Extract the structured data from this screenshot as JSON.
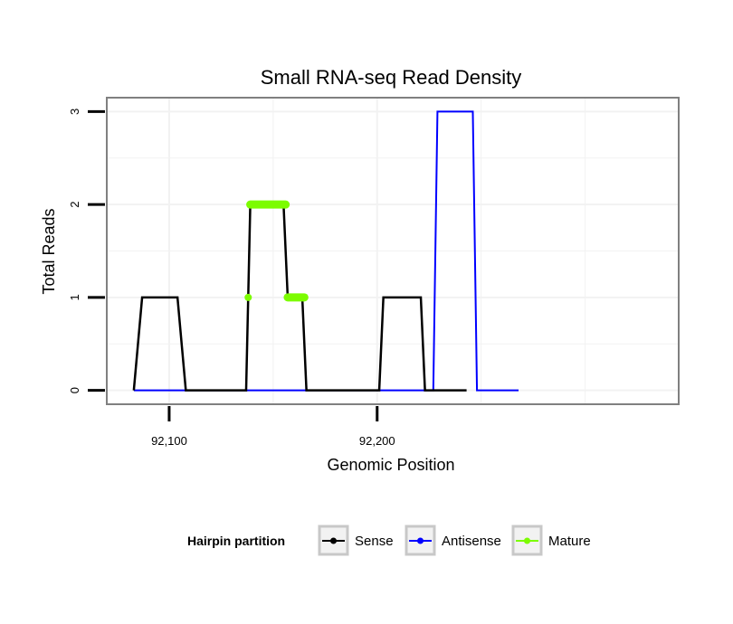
{
  "chart_data": {
    "type": "line",
    "title": "Small RNA-seq Read Density",
    "xlabel": "Genomic Position",
    "ylabel": "Total Reads",
    "xlim": [
      92070,
      92345
    ],
    "ylim": [
      -0.15,
      3.15
    ],
    "x_ticks": [
      92100,
      92200
    ],
    "x_tick_labels": [
      "92,100",
      "92,200"
    ],
    "y_ticks": [
      0,
      1,
      2,
      3
    ],
    "y_tick_labels": [
      "0",
      "1",
      "2",
      "3"
    ],
    "grid": true,
    "legend_title": "Hairpin partition",
    "legend_position": "bottom",
    "series": [
      {
        "name": "Sense",
        "color": "#000000",
        "x": [
          92083,
          92087,
          92104,
          92108,
          92137,
          92139,
          92155,
          92157,
          92164,
          92166,
          92201,
          92203,
          92221,
          92223,
          92243
        ],
        "y": [
          0,
          1,
          1,
          0,
          0,
          2,
          2,
          1,
          1,
          0,
          0,
          1,
          1,
          0,
          0
        ]
      },
      {
        "name": "Antisense",
        "color": "#0000ff",
        "x": [
          92083,
          92227,
          92229,
          92246,
          92248,
          92268
        ],
        "y": [
          0,
          0,
          3,
          3,
          0,
          0
        ]
      },
      {
        "name": "Mature",
        "color": "#7cfc00",
        "x": [
          92138,
          92139,
          92156,
          92157,
          92158,
          92165
        ],
        "y": [
          1,
          2,
          2,
          1,
          1,
          1
        ],
        "segments": [
          {
            "x": [
              92138
            ],
            "y": [
              1
            ]
          },
          {
            "x": [
              92139,
              92156
            ],
            "y": [
              2,
              2
            ]
          },
          {
            "x": [
              92157,
              92165
            ],
            "y": [
              1,
              1
            ]
          }
        ]
      }
    ]
  }
}
